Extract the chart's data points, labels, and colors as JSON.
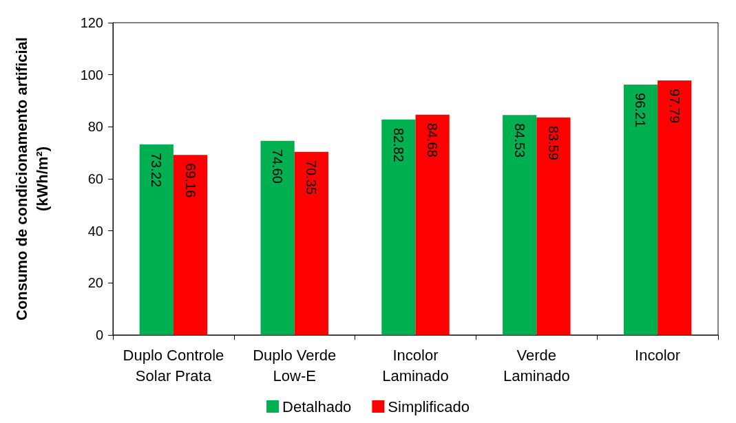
{
  "chart_data": {
    "type": "bar",
    "ylabel": "Consumo de condicionamento artificial\n(kWh/m²)",
    "categories": [
      "Duplo Controle\nSolar Prata",
      "Duplo Verde\nLow-E",
      "Incolor\nLaminado",
      "Verde\nLaminado",
      "Incolor"
    ],
    "series": [
      {
        "name": "Detalhado",
        "color": "#00b050",
        "values": [
          73.22,
          74.6,
          82.82,
          84.53,
          96.21
        ],
        "value_labels": [
          "73.22",
          "74.60",
          "82.82",
          "84.53",
          "96.21"
        ]
      },
      {
        "name": "Simplificado",
        "color": "#ff0000",
        "values": [
          69.16,
          70.35,
          84.68,
          83.59,
          97.79
        ],
        "value_labels": [
          "69.16",
          "70.35",
          "84.68",
          "83.59",
          "97.79"
        ]
      }
    ],
    "ylim": [
      0,
      120
    ],
    "yticks": [
      0,
      20,
      40,
      60,
      80,
      100,
      120
    ],
    "grid": false,
    "legend": "bottom"
  }
}
